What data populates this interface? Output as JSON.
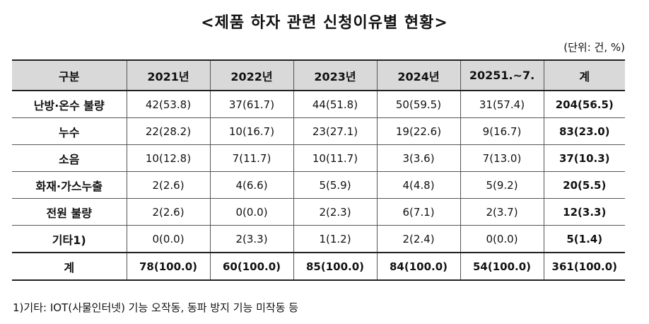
{
  "title": "<제품 하자 관련 신청이유별 현황>",
  "unit": "(단위: 건, %)",
  "table": {
    "headers": [
      "구분",
      "2021년",
      "2022년",
      "2023년",
      "2024년",
      "20251.~7.",
      "계"
    ],
    "rows": [
      [
        "난방·온수 불량",
        "42(53.8)",
        "37(61.7)",
        "44(51.8)",
        "50(59.5)",
        "31(57.4)",
        "204(56.5)"
      ],
      [
        "누수",
        "22(28.2)",
        "10(16.7)",
        "23(27.1)",
        "19(22.6)",
        "9(16.7)",
        "83(23.0)"
      ],
      [
        "소음",
        "10(12.8)",
        "7(11.7)",
        "10(11.7)",
        "3(3.6)",
        "7(13.0)",
        "37(10.3)"
      ],
      [
        "화재·가스누출",
        "2(2.6)",
        "4(6.6)",
        "5(5.9)",
        "4(4.8)",
        "5(9.2)",
        "20(5.5)"
      ],
      [
        "전원 불량",
        "2(2.6)",
        "0(0.0)",
        "2(2.3)",
        "6(7.1)",
        "2(3.7)",
        "12(3.3)"
      ],
      [
        "기타1)",
        "0(0.0)",
        "2(3.3)",
        "1(1.2)",
        "2(2.4)",
        "0(0.0)",
        "5(1.4)"
      ],
      [
        "계",
        "78(100.0)",
        "60(100.0)",
        "85(100.0)",
        "84(100.0)",
        "54(100.0)",
        "361(100.0)"
      ]
    ]
  },
  "footnote": "1)기타: IOT(사물인터넷) 기능 오작동, 동파 방지 기능 미작동 등"
}
